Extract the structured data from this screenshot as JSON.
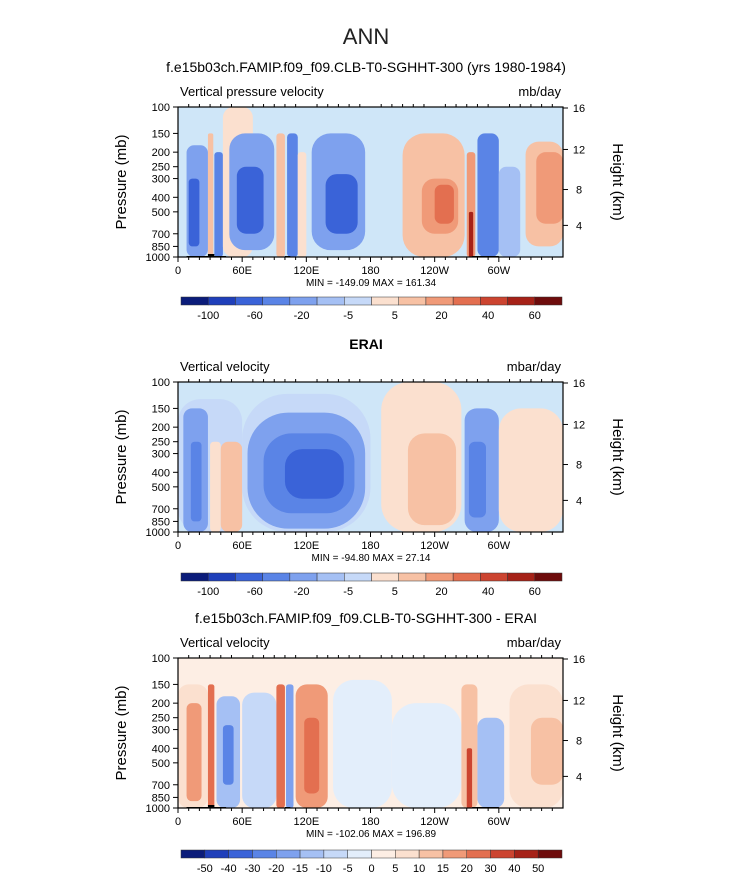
{
  "figure": {
    "title": "ANN"
  },
  "palette": {
    "ocean_top": "#cfe6f8",
    "topography": "#000000"
  },
  "chart_data": [
    {
      "type": "heatmap",
      "title": "f.e15b03ch.FAMIP.f09_f09.CLB-T0-SGHHT-300 (yrs 1980-1984)",
      "left_label": "Vertical pressure velocity",
      "right_label": "mb/day",
      "ylabel": "Pressure (mb)",
      "ylabel_right": "Height (km)",
      "x_ticks": [
        {
          "lon": 0,
          "label": "0"
        },
        {
          "lon": 60,
          "label": "60E"
        },
        {
          "lon": 120,
          "label": "120E"
        },
        {
          "lon": 180,
          "label": "180"
        },
        {
          "lon": 240,
          "label": "120W"
        },
        {
          "lon": 300,
          "label": "60W"
        }
      ],
      "y_ticks": [
        1000,
        850,
        700,
        500,
        400,
        300,
        250,
        200,
        150,
        100
      ],
      "height_ticks": [
        4,
        8,
        12,
        16
      ],
      "stats": "MIN = -149.09   MAX = 161.34",
      "colorbar": {
        "labels": [
          "-100",
          "-60",
          "-20",
          "-5",
          "5",
          "20",
          "40",
          "60"
        ],
        "colors": [
          "#0b1c7a",
          "#1f3fba",
          "#3a63d8",
          "#5a84e6",
          "#7ea1ee",
          "#a5c0f4",
          "#c6d9f8",
          "#fbe0cf",
          "#f7c1a4",
          "#f09a78",
          "#e36f50",
          "#cc4430",
          "#a62218",
          "#6e0c0c"
        ]
      },
      "regions": [
        {
          "lon": [
            8,
            28
          ],
          "p": [
            1000,
            180
          ],
          "level": -3
        },
        {
          "lon": [
            10,
            20
          ],
          "p": [
            850,
            300
          ],
          "level": -5
        },
        {
          "lon": [
            28,
            33
          ],
          "p": [
            1000,
            150
          ],
          "level": 2
        },
        {
          "lon": [
            34,
            42
          ],
          "p": [
            1000,
            200
          ],
          "level": -4
        },
        {
          "lon": [
            42,
            70
          ],
          "p": [
            1000,
            100
          ],
          "level": 1
        },
        {
          "lon": [
            48,
            90
          ],
          "p": [
            900,
            150
          ],
          "level": -3
        },
        {
          "lon": [
            55,
            80
          ],
          "p": [
            700,
            250
          ],
          "level": -5
        },
        {
          "lon": [
            92,
            100
          ],
          "p": [
            1000,
            150
          ],
          "level": 2
        },
        {
          "lon": [
            102,
            112
          ],
          "p": [
            1000,
            150
          ],
          "level": -4
        },
        {
          "lon": [
            112,
            120
          ],
          "p": [
            1000,
            200
          ],
          "level": 1
        },
        {
          "lon": [
            125,
            175
          ],
          "p": [
            900,
            150
          ],
          "level": -3
        },
        {
          "lon": [
            138,
            168
          ],
          "p": [
            700,
            280
          ],
          "level": -5
        },
        {
          "lon": [
            210,
            268
          ],
          "p": [
            1000,
            150
          ],
          "level": 2
        },
        {
          "lon": [
            228,
            262
          ],
          "p": [
            700,
            300
          ],
          "level": 3
        },
        {
          "lon": [
            240,
            258
          ],
          "p": [
            600,
            330
          ],
          "level": 4
        },
        {
          "lon": [
            270,
            278
          ],
          "p": [
            1000,
            200
          ],
          "level": 3
        },
        {
          "lon": [
            272,
            276
          ],
          "p": [
            1000,
            500
          ],
          "level": 6
        },
        {
          "lon": [
            280,
            300
          ],
          "p": [
            1000,
            150
          ],
          "level": -4
        },
        {
          "lon": [
            300,
            320
          ],
          "p": [
            1000,
            250
          ],
          "level": -2
        },
        {
          "lon": [
            325,
            360
          ],
          "p": [
            850,
            170
          ],
          "level": 2
        },
        {
          "lon": [
            335,
            360
          ],
          "p": [
            600,
            200
          ],
          "level": 3
        }
      ]
    },
    {
      "type": "heatmap",
      "title": "ERAI",
      "left_label": "Vertical velocity",
      "right_label": "mbar/day",
      "ylabel": "Pressure (mb)",
      "ylabel_right": "Height (km)",
      "x_ticks": [
        {
          "lon": 0,
          "label": "0"
        },
        {
          "lon": 60,
          "label": "60E"
        },
        {
          "lon": 120,
          "label": "120E"
        },
        {
          "lon": 180,
          "label": "180"
        },
        {
          "lon": 240,
          "label": "120W"
        },
        {
          "lon": 300,
          "label": "60W"
        }
      ],
      "y_ticks": [
        1000,
        850,
        700,
        500,
        400,
        300,
        250,
        200,
        150,
        100
      ],
      "height_ticks": [
        4,
        8,
        12,
        16
      ],
      "stats": "MIN = -94.80   MAX = 27.14",
      "colorbar": {
        "labels": [
          "-100",
          "-60",
          "-20",
          "-5",
          "5",
          "20",
          "40",
          "60"
        ],
        "colors": [
          "#0b1c7a",
          "#1f3fba",
          "#3a63d8",
          "#5a84e6",
          "#7ea1ee",
          "#a5c0f4",
          "#c6d9f8",
          "#fbe0cf",
          "#f7c1a4",
          "#f09a78",
          "#e36f50",
          "#cc4430",
          "#a62218",
          "#6e0c0c"
        ]
      },
      "regions": [
        {
          "lon": [
            0,
            60
          ],
          "p": [
            1000,
            130
          ],
          "level": -1
        },
        {
          "lon": [
            5,
            28
          ],
          "p": [
            1000,
            150
          ],
          "level": -3
        },
        {
          "lon": [
            12,
            22
          ],
          "p": [
            850,
            250
          ],
          "level": -4
        },
        {
          "lon": [
            30,
            40
          ],
          "p": [
            1000,
            250
          ],
          "level": 1
        },
        {
          "lon": [
            40,
            60
          ],
          "p": [
            1000,
            250
          ],
          "level": 2
        },
        {
          "lon": [
            60,
            180
          ],
          "p": [
            1000,
            120
          ],
          "level": -1
        },
        {
          "lon": [
            65,
            175
          ],
          "p": [
            950,
            160
          ],
          "level": -3
        },
        {
          "lon": [
            80,
            165
          ],
          "p": [
            750,
            220
          ],
          "level": -4
        },
        {
          "lon": [
            100,
            155
          ],
          "p": [
            600,
            280
          ],
          "level": -5
        },
        {
          "lon": [
            190,
            265
          ],
          "p": [
            1000,
            100
          ],
          "level": 1
        },
        {
          "lon": [
            215,
            260
          ],
          "p": [
            900,
            220
          ],
          "level": 2
        },
        {
          "lon": [
            268,
            300
          ],
          "p": [
            1000,
            150
          ],
          "level": -3
        },
        {
          "lon": [
            272,
            288
          ],
          "p": [
            800,
            250
          ],
          "level": -4
        },
        {
          "lon": [
            300,
            360
          ],
          "p": [
            1000,
            150
          ],
          "level": 1
        }
      ]
    },
    {
      "type": "heatmap",
      "title": "f.e15b03ch.FAMIP.f09_f09.CLB-T0-SGHHT-300 - ERAI",
      "left_label": "Vertical velocity",
      "right_label": "mbar/day",
      "ylabel": "Pressure (mb)",
      "ylabel_right": "Height (km)",
      "x_ticks": [
        {
          "lon": 0,
          "label": "0"
        },
        {
          "lon": 60,
          "label": "60E"
        },
        {
          "lon": 120,
          "label": "120E"
        },
        {
          "lon": 180,
          "label": "180"
        },
        {
          "lon": 240,
          "label": "120W"
        },
        {
          "lon": 300,
          "label": "60W"
        }
      ],
      "y_ticks": [
        1000,
        850,
        700,
        500,
        400,
        300,
        250,
        200,
        150,
        100
      ],
      "height_ticks": [
        4,
        8,
        12,
        16
      ],
      "stats": "MIN = -102.06   MAX = 196.89",
      "colorbar": {
        "labels": [
          "-50",
          "-40",
          "-30",
          "-20",
          "-15",
          "-10",
          "-5",
          "0",
          "5",
          "10",
          "15",
          "20",
          "30",
          "40",
          "50"
        ],
        "colors": [
          "#0b1c7a",
          "#1f3fba",
          "#3a63d8",
          "#5a84e6",
          "#7ea1ee",
          "#a5c0f4",
          "#c6d9f8",
          "#e3eefb",
          "#fdeee4",
          "#fbe0cf",
          "#f7c1a4",
          "#f09a78",
          "#e36f50",
          "#cc4430",
          "#a62218",
          "#6e0c0c"
        ]
      },
      "regions": [
        {
          "lon": [
            0,
            360
          ],
          "p": [
            1000,
            110
          ],
          "level": 1
        },
        {
          "lon": [
            0,
            28
          ],
          "p": [
            1000,
            150
          ],
          "level": 2
        },
        {
          "lon": [
            8,
            22
          ],
          "p": [
            900,
            200
          ],
          "level": 4
        },
        {
          "lon": [
            28,
            34
          ],
          "p": [
            1000,
            150
          ],
          "level": 5
        },
        {
          "lon": [
            36,
            58
          ],
          "p": [
            1000,
            180
          ],
          "level": -3
        },
        {
          "lon": [
            42,
            52
          ],
          "p": [
            700,
            280
          ],
          "level": -5
        },
        {
          "lon": [
            60,
            92
          ],
          "p": [
            1000,
            170
          ],
          "level": -2
        },
        {
          "lon": [
            92,
            100
          ],
          "p": [
            1000,
            150
          ],
          "level": 5
        },
        {
          "lon": [
            101,
            108
          ],
          "p": [
            1000,
            150
          ],
          "level": -4
        },
        {
          "lon": [
            110,
            140
          ],
          "p": [
            1000,
            150
          ],
          "level": 4
        },
        {
          "lon": [
            118,
            132
          ],
          "p": [
            800,
            250
          ],
          "level": 5
        },
        {
          "lon": [
            145,
            200
          ],
          "p": [
            1000,
            140
          ],
          "level": -1
        },
        {
          "lon": [
            200,
            265
          ],
          "p": [
            1000,
            200
          ],
          "level": -1
        },
        {
          "lon": [
            265,
            280
          ],
          "p": [
            1000,
            150
          ],
          "level": 3
        },
        {
          "lon": [
            270,
            275
          ],
          "p": [
            1000,
            400
          ],
          "level": 6
        },
        {
          "lon": [
            280,
            305
          ],
          "p": [
            1000,
            250
          ],
          "level": -3
        },
        {
          "lon": [
            310,
            360
          ],
          "p": [
            1000,
            150
          ],
          "level": 2
        },
        {
          "lon": [
            330,
            360
          ],
          "p": [
            700,
            250
          ],
          "level": 3
        }
      ]
    }
  ]
}
